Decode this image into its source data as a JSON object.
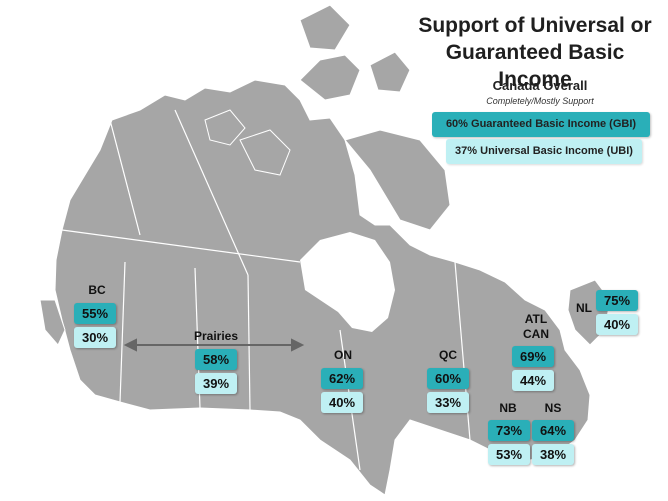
{
  "title_line1": "Support of Universal or",
  "title_line2": "Guaranteed Basic Income",
  "legend": {
    "heading": "Canada Overall",
    "subheading": "Completely/Mostly Support",
    "gbi": "60%  Guaranteed Basic Income (GBI)",
    "ubi": "37%  Universal Basic Income (UBI)"
  },
  "regions": {
    "bc": {
      "label": "BC",
      "gbi": "55%",
      "ubi": "30%"
    },
    "prairies": {
      "label": "Prairies",
      "gbi": "58%",
      "ubi": "39%"
    },
    "on": {
      "label": "ON",
      "gbi": "62%",
      "ubi": "40%"
    },
    "qc": {
      "label": "QC",
      "gbi": "60%",
      "ubi": "33%"
    },
    "atl": {
      "label1": "ATL",
      "label2": "CAN",
      "gbi": "69%",
      "ubi": "44%"
    },
    "nl": {
      "label": "NL",
      "gbi": "75%",
      "ubi": "40%"
    },
    "nb": {
      "label": "NB",
      "gbi": "73%",
      "ubi": "53%"
    },
    "ns": {
      "label": "NS",
      "gbi": "64%",
      "ubi": "38%"
    }
  },
  "colors": {
    "land": "#a6a6a6",
    "border": "#ffffff",
    "gbi": "#2aafb8",
    "ubi": "#bff0f3"
  }
}
